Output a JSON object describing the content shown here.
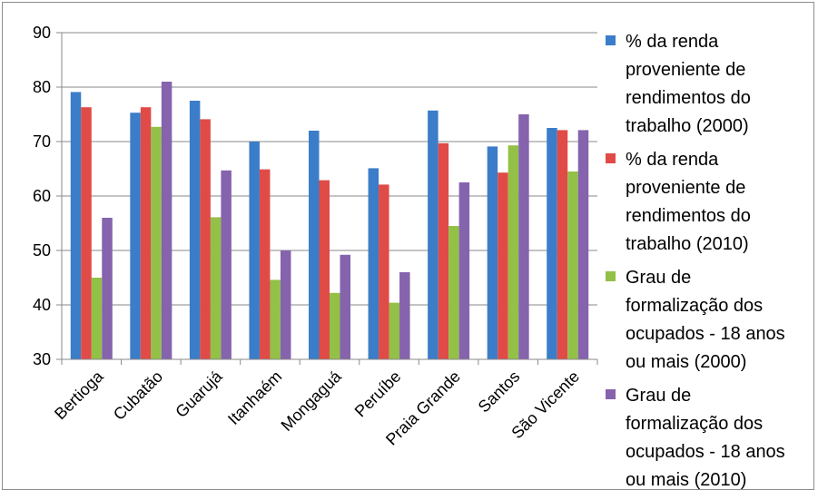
{
  "chart_data": {
    "type": "bar",
    "categories": [
      "Bertioga",
      "Cubatão",
      "Guarujá",
      "Itanhaém",
      "Mongaguá",
      "Peruíbe",
      "Praia Grande",
      "Santos",
      "São Vicente"
    ],
    "series": [
      {
        "name": "% da renda\nproveniente de\nrendimentos do\ntrabalho (2000)",
        "color": "#3b7dc8",
        "values": [
          79.1,
          75.3,
          77.5,
          70.0,
          72.0,
          65.1,
          75.7,
          69.1,
          72.5
        ]
      },
      {
        "name": "% da renda\nproveniente de\nrendimentos do\ntrabalho (2010)",
        "color": "#e04b47",
        "values": [
          76.3,
          76.3,
          74.1,
          64.9,
          62.9,
          62.1,
          69.7,
          64.3,
          72.1
        ]
      },
      {
        "name": "Grau de\nformalização dos\nocupados - 18 anos\nou mais (2000)",
        "color": "#93c047",
        "values": [
          45.0,
          72.7,
          56.1,
          44.6,
          42.2,
          40.4,
          54.5,
          69.3,
          64.5
        ]
      },
      {
        "name": "Grau de\nformalização dos\nocupados - 18 anos\nou mais (2010)",
        "color": "#8563ad",
        "values": [
          56.0,
          81.0,
          64.7,
          50.0,
          49.2,
          46.0,
          62.5,
          75.0,
          72.1
        ]
      }
    ],
    "ylim": [
      30,
      90
    ],
    "yticks": [
      30,
      40,
      50,
      60,
      70,
      80,
      90
    ],
    "grid": true,
    "legend_position": "right"
  }
}
